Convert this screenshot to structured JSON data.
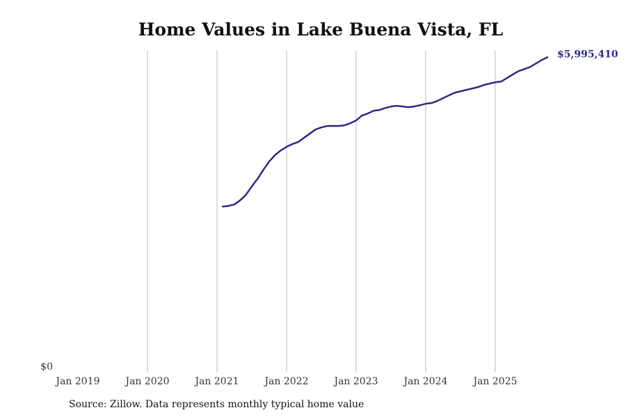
{
  "chart_data": {
    "type": "line",
    "title": "Home Values in Lake Buena Vista, FL",
    "xlabel": "",
    "ylabel": "",
    "x_ticks": [
      "Jan 2019",
      "Jan 2020",
      "Jan 2021",
      "Jan 2022",
      "Jan 2023",
      "Jan 2024",
      "Jan 2025"
    ],
    "y_ticks": [
      "$0"
    ],
    "ylim": [
      0,
      6120000
    ],
    "xlim": [
      "2019-01",
      "2025-10"
    ],
    "grid": "vertical",
    "line_color": "#2e2a85",
    "end_label": "$5,995,410",
    "series": [
      {
        "start": "2021-02",
        "frequency": "monthly",
        "values": [
          3150000,
          3163000,
          3190000,
          3269000,
          3375000,
          3534000,
          3679000,
          3851000,
          4010000,
          4129000,
          4222000,
          4288000,
          4341000,
          4381000,
          4460000,
          4540000,
          4619000,
          4659000,
          4685000,
          4685000,
          4685000,
          4698000,
          4738000,
          4791000,
          4884000,
          4923000,
          4976000,
          4990000,
          5029000,
          5056000,
          5069000,
          5056000,
          5043000,
          5056000,
          5082000,
          5109000,
          5122000,
          5162000,
          5215000,
          5268000,
          5320000,
          5347000,
          5373000,
          5400000,
          5426000,
          5466000,
          5493000,
          5519000,
          5532000,
          5598000,
          5665000,
          5731000,
          5770000,
          5810000,
          5876000,
          5942000,
          5995410
        ]
      }
    ]
  },
  "source": "Source: Zillow. Data represents monthly typical home value"
}
